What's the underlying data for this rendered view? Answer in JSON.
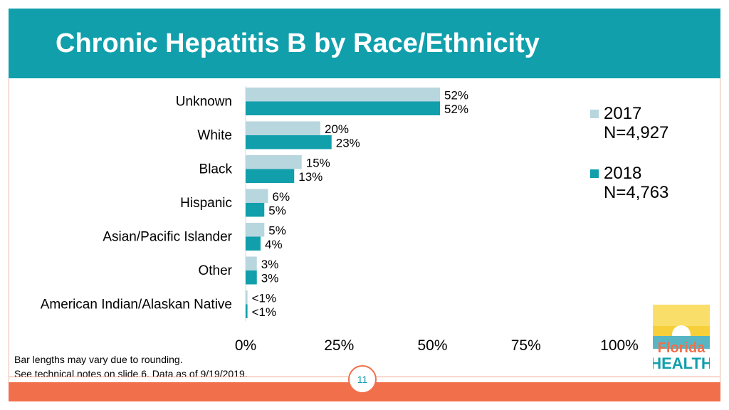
{
  "slide": {
    "title": "Chronic Hepatitis B by Race/Ethnicity",
    "notes": [
      "Bar lengths may vary due to rounding.",
      "See technical notes on slide 6. Data as of 9/19/2019."
    ],
    "page_number": "11"
  },
  "logo": {
    "line1": "Florida",
    "line2": "HEALTH"
  },
  "colors": {
    "header": "#119fac",
    "series_2017": "#b8d6de",
    "series_2018": "#119fac",
    "footer": "#f26f4b"
  },
  "chart_data": {
    "type": "bar",
    "orientation": "horizontal",
    "categories": [
      "Unknown",
      "White",
      "Black",
      "Hispanic",
      "Asian/Pacific Islander",
      "Other",
      "American Indian/Alaskan Native"
    ],
    "series": [
      {
        "name": "2017",
        "sublabel": "N=4,927",
        "values": [
          52,
          20,
          15,
          6,
          5,
          3,
          0.5
        ],
        "labels": [
          "52%",
          "20%",
          "15%",
          "6%",
          "5%",
          "3%",
          "<1%"
        ]
      },
      {
        "name": "2018",
        "sublabel": "N=4,763",
        "values": [
          52,
          23,
          13,
          5,
          4,
          3,
          0.5
        ],
        "labels": [
          "52%",
          "23%",
          "13%",
          "5%",
          "4%",
          "3%",
          "<1%"
        ]
      }
    ],
    "xlim": [
      0,
      100
    ],
    "xticks": [
      0,
      25,
      50,
      75,
      100
    ],
    "xtick_labels": [
      "0%",
      "25%",
      "50%",
      "75%",
      "100%"
    ],
    "grid": false,
    "legend_position": "right"
  }
}
